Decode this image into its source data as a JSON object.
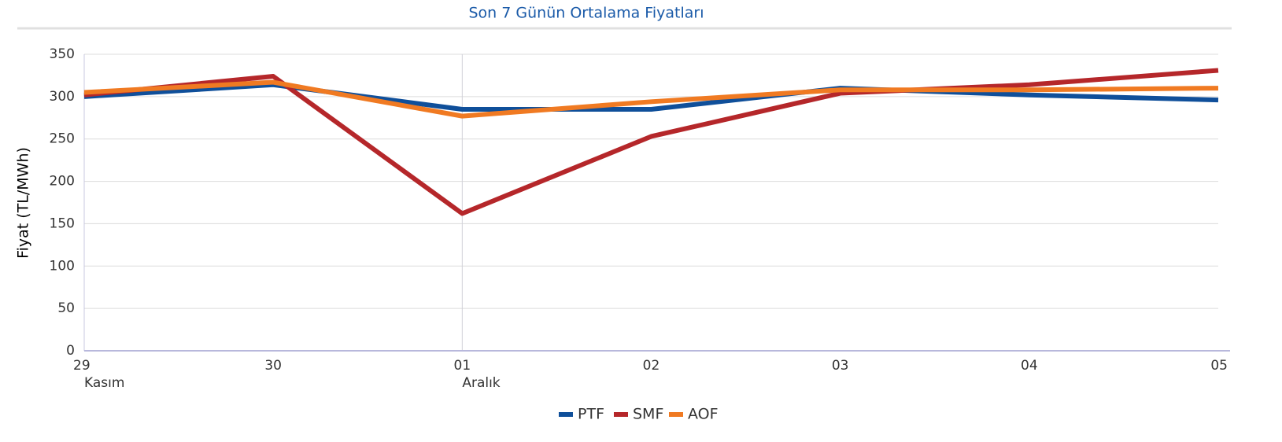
{
  "chart_data": {
    "type": "line",
    "title": "Son 7 Günün Ortalama Fiyatları",
    "y_label": "Fiyat (TL/MWh)",
    "categories": [
      "29",
      "30",
      "01",
      "02",
      "03",
      "04",
      "05"
    ],
    "month_labels": [
      "Kasım",
      null,
      "Aralık",
      null,
      null,
      null,
      null
    ],
    "series": [
      {
        "name": "PTF",
        "color": "#0f4f9a",
        "values": [
          300,
          314,
          285,
          285,
          310,
          302,
          296
        ]
      },
      {
        "name": "SMF",
        "color": "#b5272a",
        "values": [
          302,
          324,
          162,
          253,
          304,
          314,
          331
        ]
      },
      {
        "name": "AOF",
        "color": "#f07a22",
        "values": [
          305,
          317,
          277,
          294,
          308,
          308,
          310
        ]
      }
    ],
    "ylim": [
      0,
      350
    ],
    "yticks": [
      0,
      50,
      100,
      150,
      200,
      250,
      300,
      350
    ],
    "grid": true,
    "legend": "bottom"
  }
}
